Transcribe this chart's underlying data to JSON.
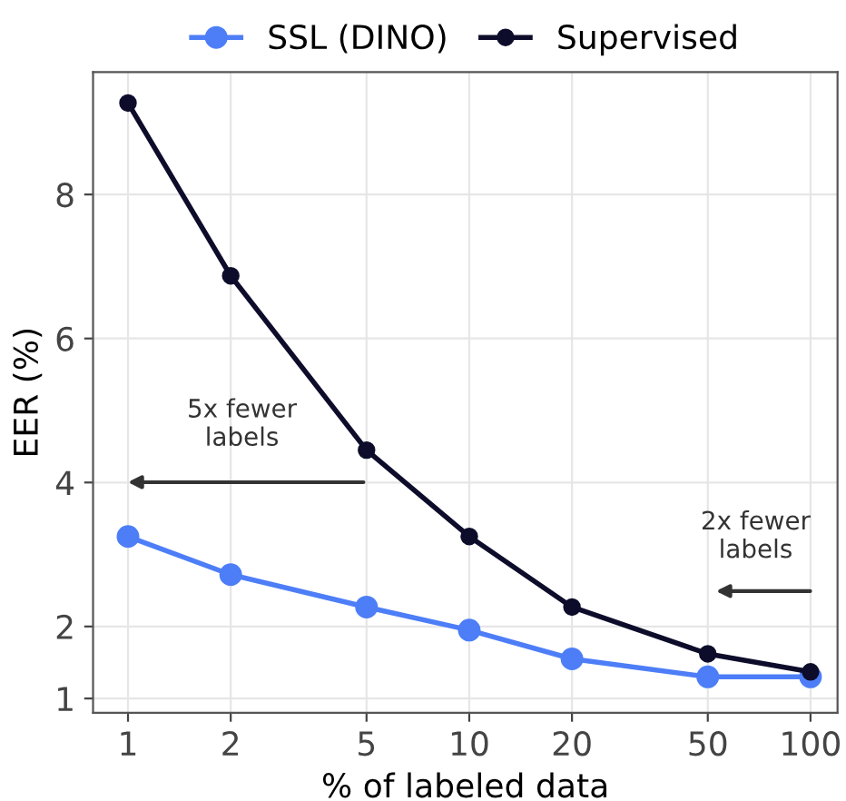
{
  "chart_data": {
    "type": "line",
    "xlabel": "% of labeled data",
    "ylabel": "EER (%)",
    "x": [
      1,
      2,
      5,
      10,
      20,
      50,
      100
    ],
    "series": [
      {
        "name": "SSL (DINO)",
        "color": "#4d7ef7",
        "values": [
          3.25,
          2.72,
          2.27,
          1.95,
          1.55,
          1.3,
          1.3
        ]
      },
      {
        "name": "Supervised",
        "color": "#0d0d2b",
        "values": [
          9.27,
          6.87,
          4.45,
          3.25,
          2.27,
          1.62,
          1.37
        ]
      }
    ],
    "log": "x",
    "xlim": [
      0.79,
      120
    ],
    "xticks": [
      1,
      2,
      5,
      10,
      20,
      50,
      100
    ],
    "ylim": [
      0.8,
      9.7
    ],
    "yticks": [
      1,
      2,
      4,
      6,
      8
    ],
    "grid": true,
    "legend": "top",
    "marker": "circle",
    "line_style": "solid",
    "annotations": [
      "5x fewer\nlabels",
      "2x fewer\nlabels"
    ]
  }
}
